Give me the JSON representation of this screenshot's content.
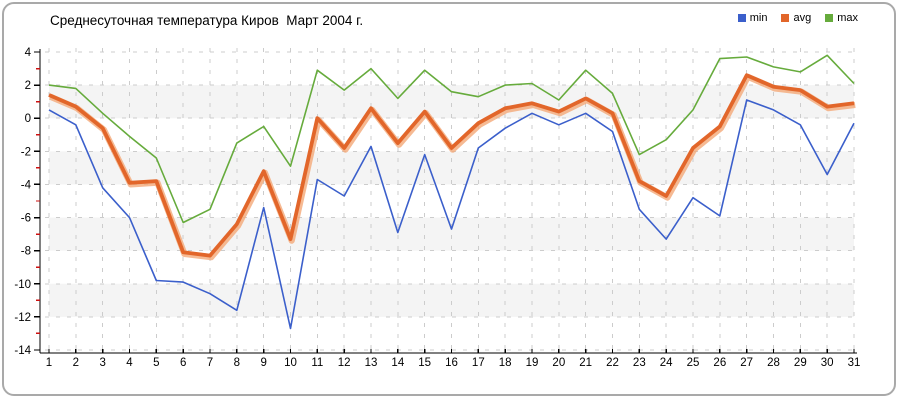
{
  "chart_data": {
    "type": "line",
    "title": "Среднесуточная температура Киров  Март 2004 г.",
    "xlabel": "",
    "ylabel": "",
    "x": [
      1,
      2,
      3,
      4,
      5,
      6,
      7,
      8,
      9,
      10,
      11,
      12,
      13,
      14,
      15,
      16,
      17,
      18,
      19,
      20,
      21,
      22,
      23,
      24,
      25,
      26,
      27,
      28,
      29,
      30,
      31
    ],
    "ylim": [
      -14,
      4
    ],
    "ytick_step": 2,
    "grid": "dashed",
    "legend_position": "top-right",
    "series": [
      {
        "name": "min",
        "color": "#3b5fcb",
        "width": 1.6,
        "values": [
          0.5,
          -0.4,
          -4.2,
          -6.0,
          -9.8,
          -9.9,
          -10.6,
          -11.6,
          -5.4,
          -12.7,
          -3.7,
          -4.7,
          -1.7,
          -6.9,
          -2.2,
          -6.7,
          -1.8,
          -0.6,
          0.3,
          -0.4,
          0.3,
          -0.8,
          -5.5,
          -7.3,
          -4.8,
          -5.9,
          1.1,
          0.5,
          -0.4,
          -3.4,
          -0.3
        ]
      },
      {
        "name": "avg",
        "color": "#e2662a",
        "halo": "#f4a978",
        "width": 3.8,
        "values": [
          1.4,
          0.7,
          -0.6,
          -3.9,
          -3.8,
          -8.1,
          -8.3,
          -6.4,
          -3.2,
          -7.3,
          0.0,
          -1.8,
          0.6,
          -1.5,
          0.4,
          -1.8,
          -0.3,
          0.6,
          0.9,
          0.4,
          1.2,
          0.3,
          -3.8,
          -4.7,
          -1.8,
          -0.5,
          2.6,
          1.9,
          1.7,
          0.7,
          0.9
        ]
      },
      {
        "name": "max",
        "color": "#66ab3c",
        "width": 1.6,
        "values": [
          2.0,
          1.8,
          0.3,
          -1.1,
          -2.4,
          -6.3,
          -5.5,
          -1.5,
          -0.5,
          -2.9,
          2.9,
          1.7,
          3.0,
          1.2,
          2.9,
          1.6,
          1.3,
          2.0,
          2.1,
          1.1,
          2.9,
          1.5,
          -2.2,
          -1.3,
          0.5,
          3.6,
          3.7,
          3.1,
          2.8,
          3.8,
          2.1
        ]
      }
    ],
    "colors": {
      "band": "#f4f4f4",
      "gridline": "#cccccc",
      "axis": "#000000",
      "minor_tick": "#cc1111",
      "text": "#000000",
      "border": "#a9a9a9"
    }
  }
}
